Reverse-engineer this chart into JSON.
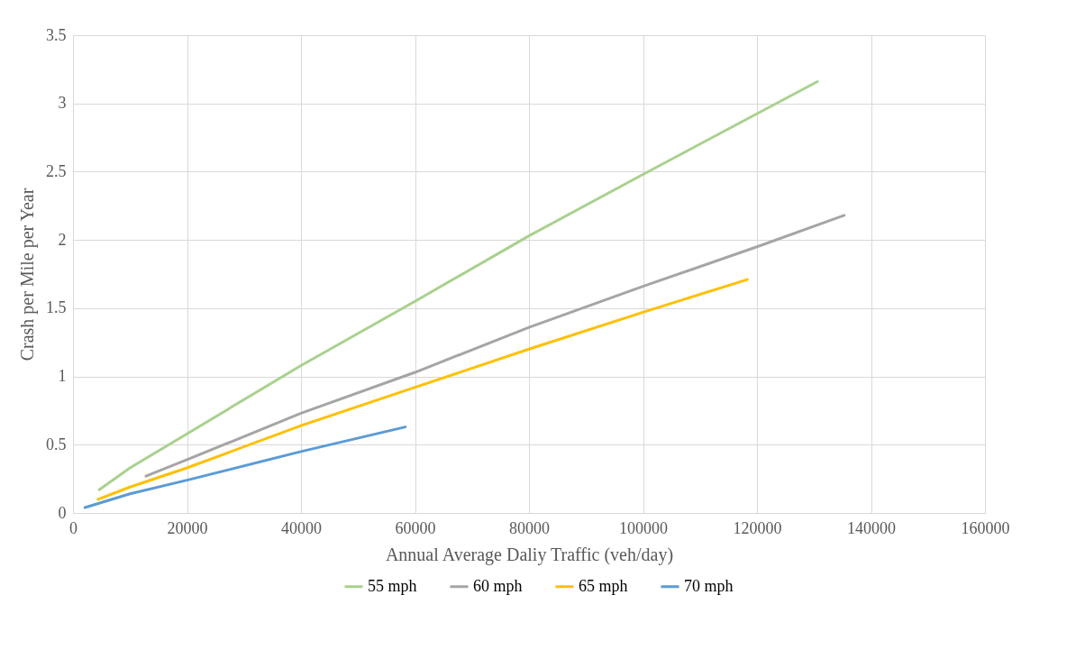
{
  "chart_data": {
    "type": "line",
    "xlabel": "Annual Average Daliy Traffic (veh/day)",
    "ylabel": "Crash per Mile per Year",
    "xlim": [
      0,
      160000
    ],
    "xticks": [
      0,
      20000,
      40000,
      60000,
      80000,
      100000,
      120000,
      140000,
      160000
    ],
    "ylim": [
      0,
      3.5
    ],
    "yticks": [
      0,
      0.5,
      1,
      1.5,
      2,
      2.5,
      3,
      3.5
    ],
    "grid": true,
    "legend": "bottom",
    "marker": "none",
    "line_style": "solid",
    "series": [
      {
        "name": "55 mph",
        "color": "#a9d18e",
        "x": [
          4600,
          10000,
          20000,
          40000,
          60000,
          80000,
          100000,
          130600
        ],
        "values": [
          0.17,
          0.33,
          0.58,
          1.08,
          1.55,
          2.03,
          2.48,
          3.16
        ]
      },
      {
        "name": "60 mph",
        "color": "#a5a5a5",
        "x": [
          12800,
          20000,
          40000,
          60000,
          80000,
          100000,
          120000,
          135300
        ],
        "values": [
          0.27,
          0.39,
          0.73,
          1.03,
          1.36,
          1.66,
          1.95,
          2.18
        ]
      },
      {
        "name": "65 mph",
        "color": "#ffc000",
        "x": [
          4400,
          10000,
          20000,
          40000,
          60000,
          80000,
          100000,
          118300
        ],
        "values": [
          0.1,
          0.19,
          0.33,
          0.64,
          0.92,
          1.2,
          1.47,
          1.71
        ]
      },
      {
        "name": "70 mph",
        "color": "#5b9bd5",
        "x": [
          2100,
          10000,
          20000,
          40000,
          58300
        ],
        "values": [
          0.04,
          0.14,
          0.24,
          0.45,
          0.63
        ]
      }
    ]
  }
}
